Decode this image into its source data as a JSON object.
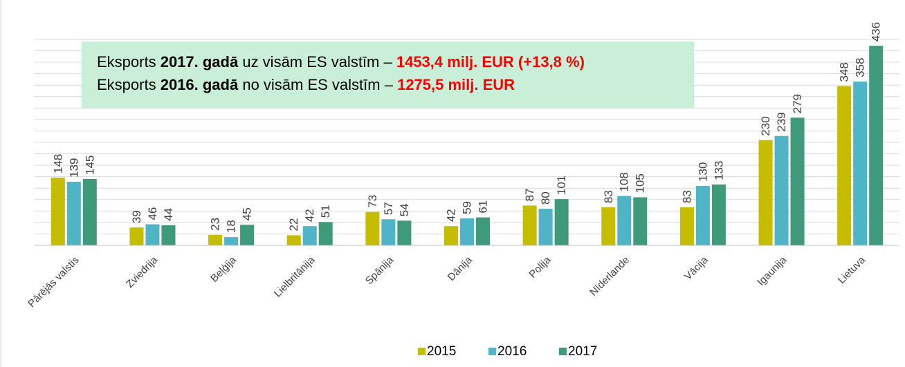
{
  "chart_data": {
    "type": "bar",
    "categories": [
      "Pārējās valstis",
      "Zviedrija",
      "Beļģija",
      "Lielbritānija",
      "Spānija",
      "Dānija",
      "Polija",
      "Nīderlande",
      "Vācija",
      "Igaunija",
      "Lietuva"
    ],
    "series": [
      {
        "name": "2015",
        "color": "#c5bd00",
        "values": [
          148,
          39,
          23,
          22,
          73,
          42,
          87,
          83,
          83,
          230,
          348
        ]
      },
      {
        "name": "2016",
        "color": "#4fb5c6",
        "values": [
          139,
          46,
          18,
          42,
          57,
          59,
          80,
          108,
          130,
          239,
          358
        ]
      },
      {
        "name": "2017",
        "color": "#3f9a7c",
        "values": [
          145,
          44,
          45,
          51,
          54,
          61,
          101,
          105,
          133,
          279,
          436
        ]
      }
    ],
    "ylim": [
      0,
      450
    ],
    "yticks": [
      0,
      25,
      50,
      75,
      100,
      125,
      150,
      175,
      200,
      225,
      250,
      275,
      300,
      325,
      350,
      375,
      400,
      425,
      450
    ],
    "grid": true,
    "legend": "bottom",
    "annotation": [
      [
        {
          "text": "Eksports "
        },
        {
          "text": "2017. gadā",
          "bold": true
        },
        {
          "text": " uz visām ES valstīm – "
        },
        {
          "text": "1453,4 milj. EUR (+13,8 %)",
          "bold": true,
          "color": "#ff0000"
        }
      ],
      [
        {
          "text": "Eksports "
        },
        {
          "text": "2016. gadā",
          "bold": true
        },
        {
          "text": " no visām ES valstīm – "
        },
        {
          "text": "1275,5 milj. EUR",
          "bold": true,
          "color": "#ff0000"
        }
      ]
    ]
  }
}
